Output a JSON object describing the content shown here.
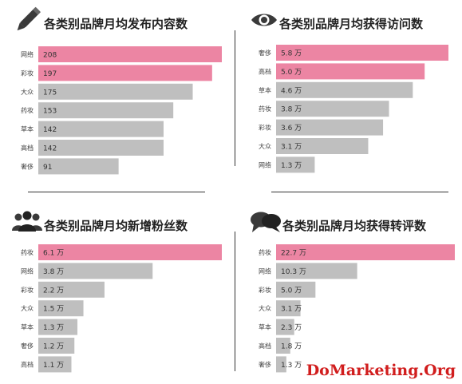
{
  "colors": {
    "highlight": "#ec85a3",
    "bar": "#bfbfbf",
    "label": "#444444"
  },
  "chart_data": [
    {
      "type": "bar",
      "orientation": "horizontal",
      "title": "各类别品牌月均发布内容数",
      "icon": "pencil-icon",
      "categories": [
        "网络",
        "彩妆",
        "大众",
        "药妆",
        "草本",
        "高档",
        "奢侈"
      ],
      "values": [
        208,
        197,
        175,
        153,
        142,
        142,
        91
      ],
      "value_labels": [
        "208",
        "197",
        "175",
        "153",
        "142",
        "142",
        "91"
      ],
      "highlighted": [
        0,
        1
      ],
      "xlim": [
        0,
        208
      ]
    },
    {
      "type": "bar",
      "orientation": "horizontal",
      "title": "各类别品牌月均获得访问数",
      "icon": "eye-icon",
      "categories": [
        "奢侈",
        "高档",
        "草本",
        "药妆",
        "彩妆",
        "大众",
        "网络"
      ],
      "values": [
        5.8,
        5.0,
        4.6,
        3.8,
        3.6,
        3.1,
        1.3
      ],
      "value_labels": [
        "5.8 万",
        "5.0 万",
        "4.6 万",
        "3.8 万",
        "3.6 万",
        "3.1 万",
        "1.3 万"
      ],
      "highlighted": [
        0,
        1
      ],
      "xlim": [
        0,
        5.8
      ]
    },
    {
      "type": "bar",
      "orientation": "horizontal",
      "title": "各类别品牌月均新增粉丝数",
      "icon": "people-icon",
      "categories": [
        "药妆",
        "网络",
        "彩妆",
        "大众",
        "草本",
        "奢侈",
        "高档"
      ],
      "values": [
        6.1,
        3.8,
        2.2,
        1.5,
        1.3,
        1.2,
        1.1
      ],
      "value_labels": [
        "6.1 万",
        "3.8 万",
        "2.2 万",
        "1.5 万",
        "1.3 万",
        "1.2 万",
        "1.1 万"
      ],
      "highlighted": [
        0
      ],
      "xlim": [
        0,
        6.1
      ]
    },
    {
      "type": "bar",
      "orientation": "horizontal",
      "title": "各类别品牌月均获得转评数",
      "icon": "speech-bubbles-icon",
      "categories": [
        "药妆",
        "网络",
        "彩妆",
        "大众",
        "草本",
        "高档",
        "奢侈"
      ],
      "values": [
        22.7,
        10.3,
        5.0,
        3.1,
        2.3,
        1.8,
        1.3
      ],
      "value_labels": [
        "22.7 万",
        "10.3 万",
        "5.0 万",
        "3.1 万",
        "2.3 万",
        "1.8 万",
        "1.3 万"
      ],
      "highlighted": [
        0
      ],
      "xlim": [
        0,
        22.7
      ]
    }
  ],
  "watermark": "DoMarketing.Org"
}
